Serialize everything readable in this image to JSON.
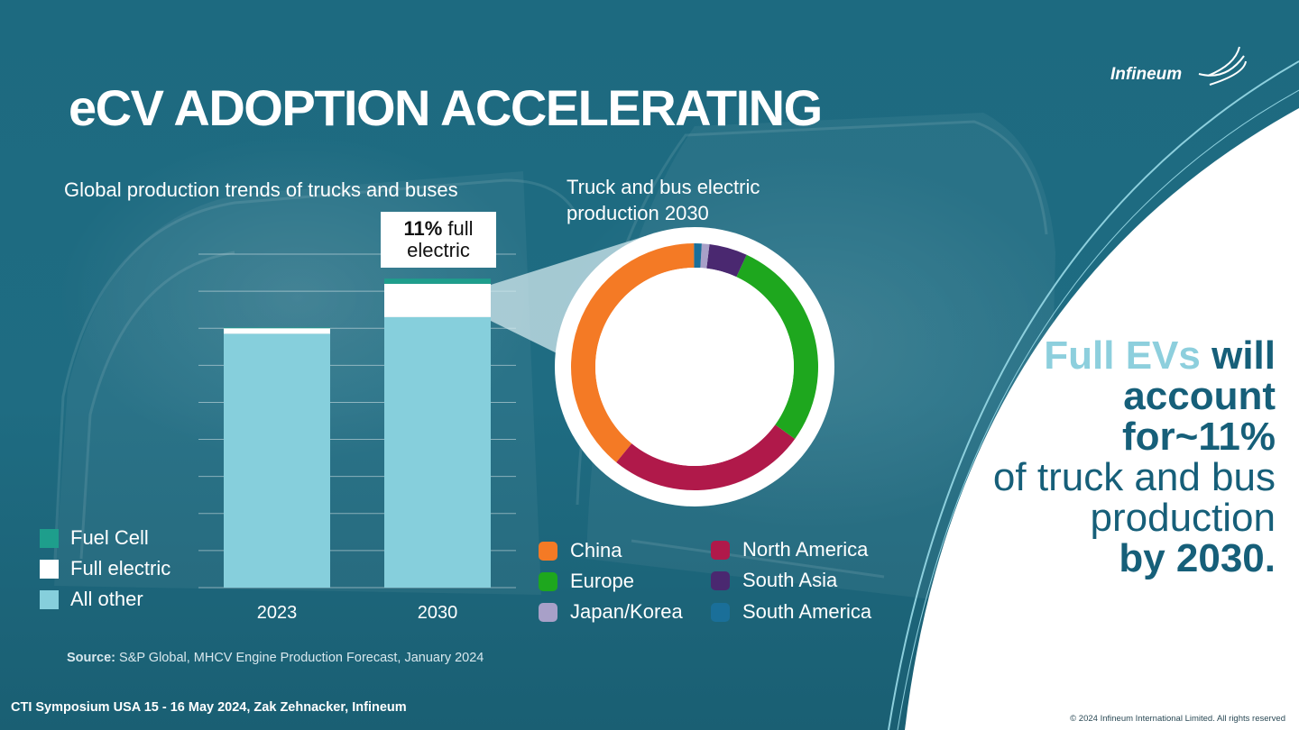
{
  "title": "eCV ADOPTION ACCELERATING",
  "brand": "Infineum",
  "bar_chart": {
    "subtitle": "Global production trends of trucks and buses",
    "callout_bold": "11%",
    "callout_rest": " full",
    "callout_line2": "electric",
    "legend": [
      {
        "label": "Fuel Cell",
        "color": "#1e9e8c"
      },
      {
        "label": "Full electric",
        "color": "#ffffff"
      },
      {
        "label": "All other",
        "color": "#86cfdc"
      }
    ]
  },
  "donut": {
    "subtitle": "Truck and bus electric production 2030",
    "legend": [
      {
        "label": "China",
        "color": "#f47a25"
      },
      {
        "label": "Europe",
        "color": "#1ea71e"
      },
      {
        "label": "Japan/Korea",
        "color": "#a8a0c8"
      },
      {
        "label": "North America",
        "color": "#b0194a"
      },
      {
        "label": "South Asia",
        "color": "#4a2870"
      },
      {
        "label": "South America",
        "color": "#1a6f99"
      }
    ]
  },
  "chart_data": [
    {
      "type": "bar",
      "stacked": true,
      "categories": [
        "2023",
        "2030"
      ],
      "series": [
        {
          "name": "All other",
          "values": [
            68.5,
            73
          ],
          "color": "#86cfdc"
        },
        {
          "name": "Full electric",
          "values": [
            1.5,
            9
          ],
          "color": "#ffffff"
        },
        {
          "name": "Fuel Cell",
          "values": [
            0.2,
            1.4
          ],
          "color": "#1e9e8c"
        }
      ],
      "ylim": [
        0,
        90
      ],
      "grid": true,
      "title": "Global production trends of trucks and buses"
    },
    {
      "type": "pie",
      "donut": true,
      "title": "Truck and bus electric production 2030",
      "labels": [
        "China",
        "North America",
        "Europe",
        "South Asia",
        "Japan/Korea",
        "South America"
      ],
      "values": [
        39,
        26,
        28,
        5,
        1,
        1
      ],
      "colors": [
        "#f47a25",
        "#b0194a",
        "#1ea71e",
        "#4a2870",
        "#a8a0c8",
        "#1a6f99"
      ]
    }
  ],
  "right_message": {
    "accent": "Full EVs",
    "line1_rest": " will",
    "line2": "account",
    "line3": "for~11%",
    "line4": "of truck and bus",
    "line5": "production",
    "line6": "by 2030."
  },
  "source_label": "Source:",
  "source_text": " S&P Global, MHCV Engine Production Forecast, January 2024",
  "footer": "CTI Symposium USA 15 - 16 May 2024, Zak Zehnacker, Infineum",
  "copyright": "© 2024 Infineum International Limited. All rights reserved"
}
